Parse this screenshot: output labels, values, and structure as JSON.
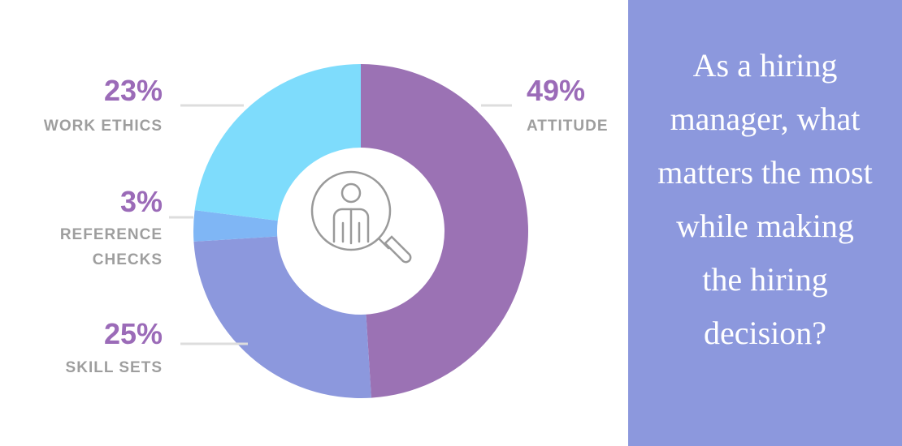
{
  "chart_data": {
    "type": "pie",
    "title": "As a hiring manager, what matters the most while making the hiring decision?",
    "categories": [
      "ATTITUDE",
      "SKILL SETS",
      "REFERENCE CHECKS",
      "WORK ETHICS"
    ],
    "values": [
      49,
      25,
      3,
      23
    ],
    "value_labels": [
      "49%",
      "25%",
      "3%",
      "23%"
    ],
    "colors": [
      "#9b72b4",
      "#8c98dd",
      "#7fb6f5",
      "#7edcfc"
    ],
    "donut": true
  }
}
